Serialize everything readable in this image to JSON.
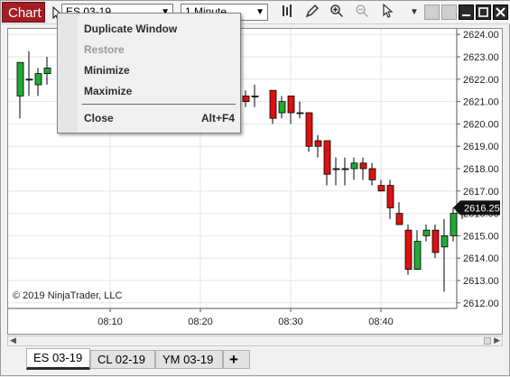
{
  "toolbar": {
    "chart_button": "Chart",
    "instrument": "ES 03-19",
    "interval": "1 Minute",
    "tool_icons": [
      "bar-type-icon",
      "pencil-icon",
      "zoom-in-icon",
      "zoom-out-icon",
      "pointer-icon",
      "dropdown-icon"
    ]
  },
  "context_menu": {
    "items": [
      {
        "label": "Duplicate Window",
        "enabled": true
      },
      {
        "label": "Restore",
        "enabled": false
      },
      {
        "label": "Minimize",
        "enabled": true
      },
      {
        "label": "Maximize",
        "enabled": true
      },
      {
        "label": "Close",
        "enabled": true,
        "shortcut": "Alt+F4"
      }
    ]
  },
  "chart_data": {
    "type": "candlestick",
    "instrument": "ES 03-19",
    "x_ticks": [
      "08:10",
      "08:20",
      "08:30",
      "08:40"
    ],
    "y_ticks": [
      "2624.00",
      "2623.00",
      "2622.00",
      "2621.00",
      "2620.00",
      "2619.00",
      "2618.00",
      "2617.00",
      "2616.00",
      "2615.00",
      "2614.00",
      "2613.00",
      "2612.00"
    ],
    "ylim": [
      2611.75,
      2624.25
    ],
    "last_price": "2616.25",
    "up_color": "#22aa33",
    "down_color": "#dd1111",
    "candles": [
      {
        "t": 0,
        "o": 2621.25,
        "h": 2622.75,
        "l": 2620.25,
        "c": 2622.75
      },
      {
        "t": 1,
        "o": 2622.0,
        "h": 2623.25,
        "l": 2621.25,
        "c": 2622.0
      },
      {
        "t": 2,
        "o": 2621.75,
        "h": 2622.5,
        "l": 2621.25,
        "c": 2622.25
      },
      {
        "t": 3,
        "o": 2622.25,
        "h": 2623.0,
        "l": 2621.75,
        "c": 2622.5
      },
      {
        "t": 25,
        "o": 2621.25,
        "h": 2621.5,
        "l": 2620.75,
        "c": 2621.0
      },
      {
        "t": 26,
        "o": 2621.25,
        "h": 2621.75,
        "l": 2620.75,
        "c": 2621.25
      },
      {
        "t": 28,
        "o": 2621.5,
        "h": 2621.5,
        "l": 2620.0,
        "c": 2620.25
      },
      {
        "t": 29,
        "o": 2620.5,
        "h": 2621.25,
        "l": 2620.25,
        "c": 2621.0
      },
      {
        "t": 30,
        "o": 2621.25,
        "h": 2621.25,
        "l": 2620.0,
        "c": 2620.5
      },
      {
        "t": 31,
        "o": 2620.5,
        "h": 2621.0,
        "l": 2620.25,
        "c": 2620.5
      },
      {
        "t": 32,
        "o": 2620.5,
        "h": 2620.5,
        "l": 2618.75,
        "c": 2619.0
      },
      {
        "t": 33,
        "o": 2619.25,
        "h": 2619.5,
        "l": 2618.5,
        "c": 2619.0
      },
      {
        "t": 34,
        "o": 2619.25,
        "h": 2619.25,
        "l": 2617.25,
        "c": 2617.75
      },
      {
        "t": 35,
        "o": 2618.0,
        "h": 2618.5,
        "l": 2617.25,
        "c": 2618.0
      },
      {
        "t": 36,
        "o": 2618.0,
        "h": 2618.5,
        "l": 2617.25,
        "c": 2618.0
      },
      {
        "t": 37,
        "o": 2618.0,
        "h": 2618.5,
        "l": 2617.5,
        "c": 2618.25
      },
      {
        "t": 38,
        "o": 2618.25,
        "h": 2618.5,
        "l": 2617.5,
        "c": 2618.0
      },
      {
        "t": 39,
        "o": 2618.0,
        "h": 2618.25,
        "l": 2617.25,
        "c": 2617.5
      },
      {
        "t": 40,
        "o": 2617.25,
        "h": 2617.5,
        "l": 2617.0,
        "c": 2617.0
      },
      {
        "t": 41,
        "o": 2617.25,
        "h": 2617.5,
        "l": 2615.75,
        "c": 2616.25
      },
      {
        "t": 42,
        "o": 2616.0,
        "h": 2616.5,
        "l": 2615.5,
        "c": 2615.5
      },
      {
        "t": 43,
        "o": 2615.25,
        "h": 2615.5,
        "l": 2613.25,
        "c": 2613.5
      },
      {
        "t": 44,
        "o": 2613.5,
        "h": 2615.25,
        "l": 2613.5,
        "c": 2614.75
      },
      {
        "t": 45,
        "o": 2615.0,
        "h": 2615.5,
        "l": 2614.75,
        "c": 2615.25
      },
      {
        "t": 46,
        "o": 2615.25,
        "h": 2615.5,
        "l": 2614.0,
        "c": 2614.25
      },
      {
        "t": 47,
        "o": 2614.5,
        "h": 2615.75,
        "l": 2612.5,
        "c": 2615.0
      },
      {
        "t": 48,
        "o": 2615.0,
        "h": 2616.25,
        "l": 2614.75,
        "c": 2616.0
      },
      {
        "t": 49,
        "o": 2616.0,
        "h": 2616.5,
        "l": 2615.75,
        "c": 2616.25
      }
    ]
  },
  "copyright": "© 2019 NinjaTrader, LLC",
  "tabs": [
    {
      "label": "ES 03-19",
      "active": true
    },
    {
      "label": "CL 02-19",
      "active": false
    },
    {
      "label": "YM 03-19",
      "active": false
    }
  ],
  "add_tab_label": "+"
}
